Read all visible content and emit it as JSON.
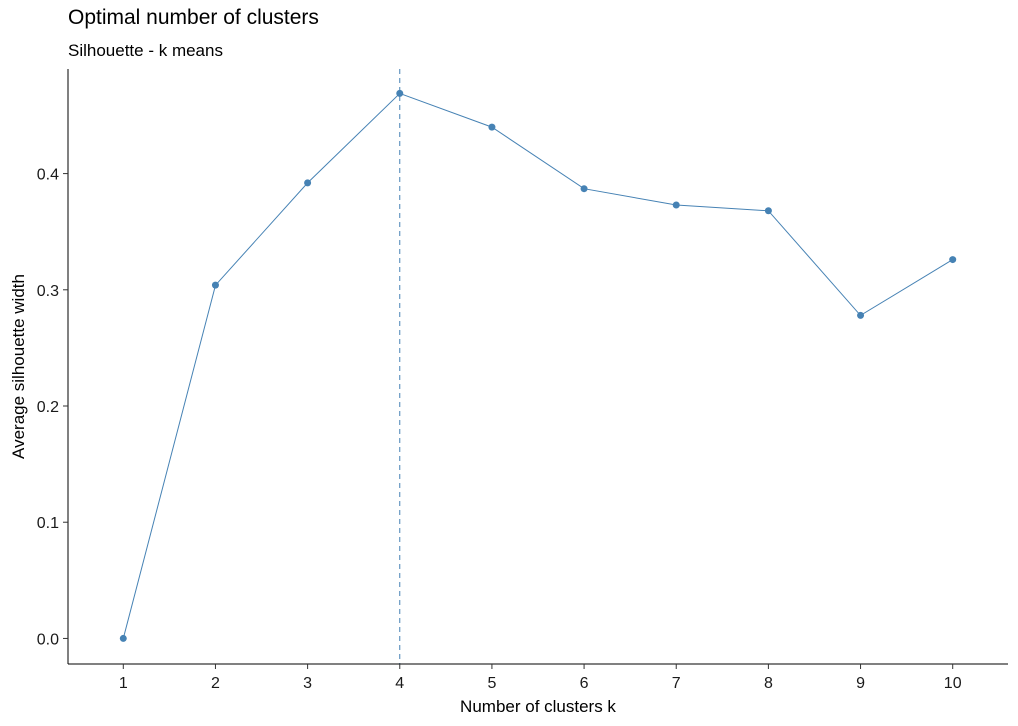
{
  "chart_data": {
    "type": "line",
    "title": "Optimal number of clusters",
    "subtitle": "Silhouette - k means",
    "xlabel": "Number of clusters k",
    "ylabel": "Average silhouette width",
    "categories": [
      "1",
      "2",
      "3",
      "4",
      "5",
      "6",
      "7",
      "8",
      "9",
      "10"
    ],
    "series": [
      {
        "values": [
          0.0,
          0.304,
          0.392,
          0.469,
          0.44,
          0.387,
          0.373,
          0.368,
          0.278,
          0.326
        ]
      }
    ],
    "yticks": [
      "0.0",
      "0.1",
      "0.2",
      "0.3",
      "0.4"
    ],
    "ylim": [
      -0.022,
      0.49
    ],
    "optimal_k": "4",
    "grid": false,
    "colors": {
      "line": "#4682B4",
      "point": "#4682B4",
      "axis": "#000000"
    }
  }
}
